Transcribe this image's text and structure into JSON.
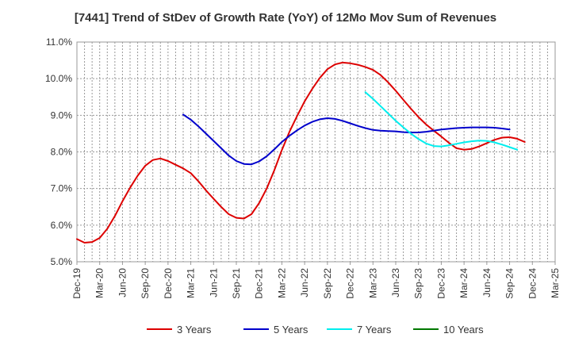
{
  "chart_data": {
    "type": "line",
    "title": "[7441]  Trend of StDev of Growth Rate (YoY) of 12Mo Mov Sum of Revenues",
    "xlabel": "",
    "ylabel": "",
    "ylim": [
      5.0,
      11.0
    ],
    "yticks": [
      5.0,
      6.0,
      7.0,
      8.0,
      9.0,
      10.0,
      11.0
    ],
    "ytick_labels": [
      "5.0%",
      "6.0%",
      "7.0%",
      "8.0%",
      "9.0%",
      "10.0%",
      "11.0%"
    ],
    "xlim": [
      0,
      63
    ],
    "xtick_positions": [
      0,
      3,
      6,
      9,
      12,
      15,
      18,
      21,
      24,
      27,
      30,
      33,
      36,
      39,
      42,
      45,
      48,
      51,
      54,
      57,
      60,
      63
    ],
    "xtick_labels": [
      "Dec-19",
      "Mar-20",
      "Jun-20",
      "Sep-20",
      "Dec-20",
      "Mar-21",
      "Jun-21",
      "Sep-21",
      "Dec-21",
      "Mar-22",
      "Jun-22",
      "Sep-22",
      "Dec-22",
      "Mar-23",
      "Jun-23",
      "Sep-23",
      "Dec-23",
      "Mar-24",
      "Jun-24",
      "Sep-24",
      "Dec-24",
      "Mar-25"
    ],
    "grid": true,
    "legend_position": "bottom",
    "series": [
      {
        "name": "3 Years",
        "color": "#dd0000",
        "start_index": 0,
        "values": [
          5.62,
          5.52,
          5.54,
          5.65,
          5.9,
          6.25,
          6.65,
          7.02,
          7.35,
          7.62,
          7.78,
          7.82,
          7.75,
          7.65,
          7.55,
          7.42,
          7.2,
          6.95,
          6.72,
          6.5,
          6.3,
          6.2,
          6.18,
          6.3,
          6.6,
          7.0,
          7.5,
          8.05,
          8.55,
          8.98,
          9.38,
          9.72,
          10.02,
          10.26,
          10.39,
          10.44,
          10.42,
          10.38,
          10.32,
          10.24,
          10.1,
          9.9,
          9.67,
          9.42,
          9.18,
          8.95,
          8.75,
          8.58,
          8.42,
          8.25,
          8.1,
          8.06,
          8.08,
          8.15,
          8.24,
          8.33,
          8.39,
          8.4,
          8.36,
          8.27
        ]
      },
      {
        "name": "5 Years",
        "color": "#0000cc",
        "start_index": 14,
        "values": [
          9.02,
          8.88,
          8.7,
          8.5,
          8.3,
          8.1,
          7.9,
          7.75,
          7.67,
          7.66,
          7.74,
          7.88,
          8.07,
          8.27,
          8.44,
          8.59,
          8.72,
          8.82,
          8.89,
          8.92,
          8.9,
          8.85,
          8.78,
          8.71,
          8.65,
          8.6,
          8.58,
          8.57,
          8.56,
          8.54,
          8.53,
          8.53,
          8.55,
          8.58,
          8.61,
          8.63,
          8.65,
          8.66,
          8.67,
          8.67,
          8.67,
          8.66,
          8.64,
          8.61
        ]
      },
      {
        "name": "7 Years",
        "color": "#00eeee",
        "start_index": 38,
        "values": [
          9.63,
          9.45,
          9.25,
          9.05,
          8.85,
          8.67,
          8.5,
          8.35,
          8.23,
          8.16,
          8.15,
          8.18,
          8.22,
          8.26,
          8.29,
          8.31,
          8.3,
          8.26,
          8.2,
          8.13,
          8.06
        ]
      },
      {
        "name": "10 Years",
        "color": "#007700",
        "start_index": 0,
        "values": []
      }
    ]
  }
}
